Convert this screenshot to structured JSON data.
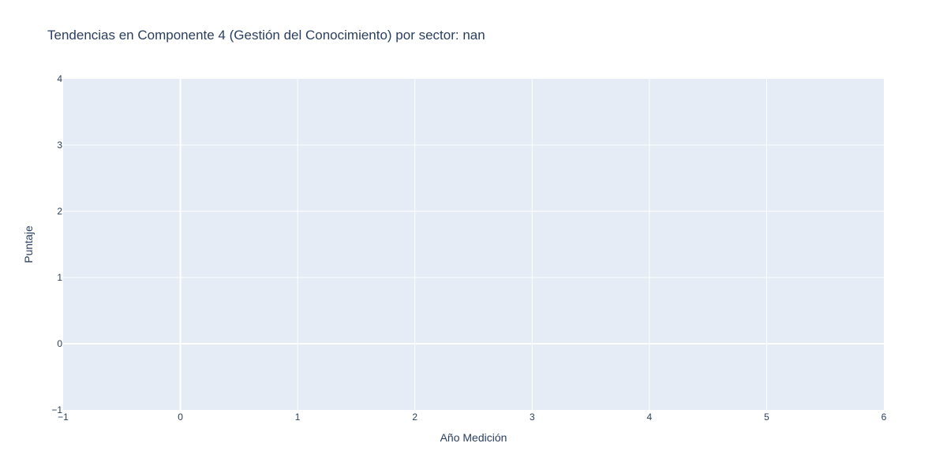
{
  "chart_data": {
    "type": "line",
    "title": "Tendencias en Componente 4 (Gestión del Conocimiento) por sector: nan",
    "xlabel": "Año Medición",
    "ylabel": "Puntaje",
    "xlim": [
      -1,
      6
    ],
    "ylim": [
      -1,
      4
    ],
    "x_ticks": [
      -1,
      0,
      1,
      2,
      3,
      4,
      5,
      6
    ],
    "y_ticks": [
      -1,
      0,
      1,
      2,
      3,
      4
    ],
    "x_tick_labels": [
      "−1",
      "0",
      "1",
      "2",
      "3",
      "4",
      "5",
      "6"
    ],
    "y_tick_labels": [
      "−1",
      "0",
      "1",
      "2",
      "3",
      "4"
    ],
    "grid": true,
    "series": [],
    "colors": {
      "plot_background": "#e5ecf6",
      "grid": "#ffffff",
      "text": "#2a3f5f"
    }
  }
}
